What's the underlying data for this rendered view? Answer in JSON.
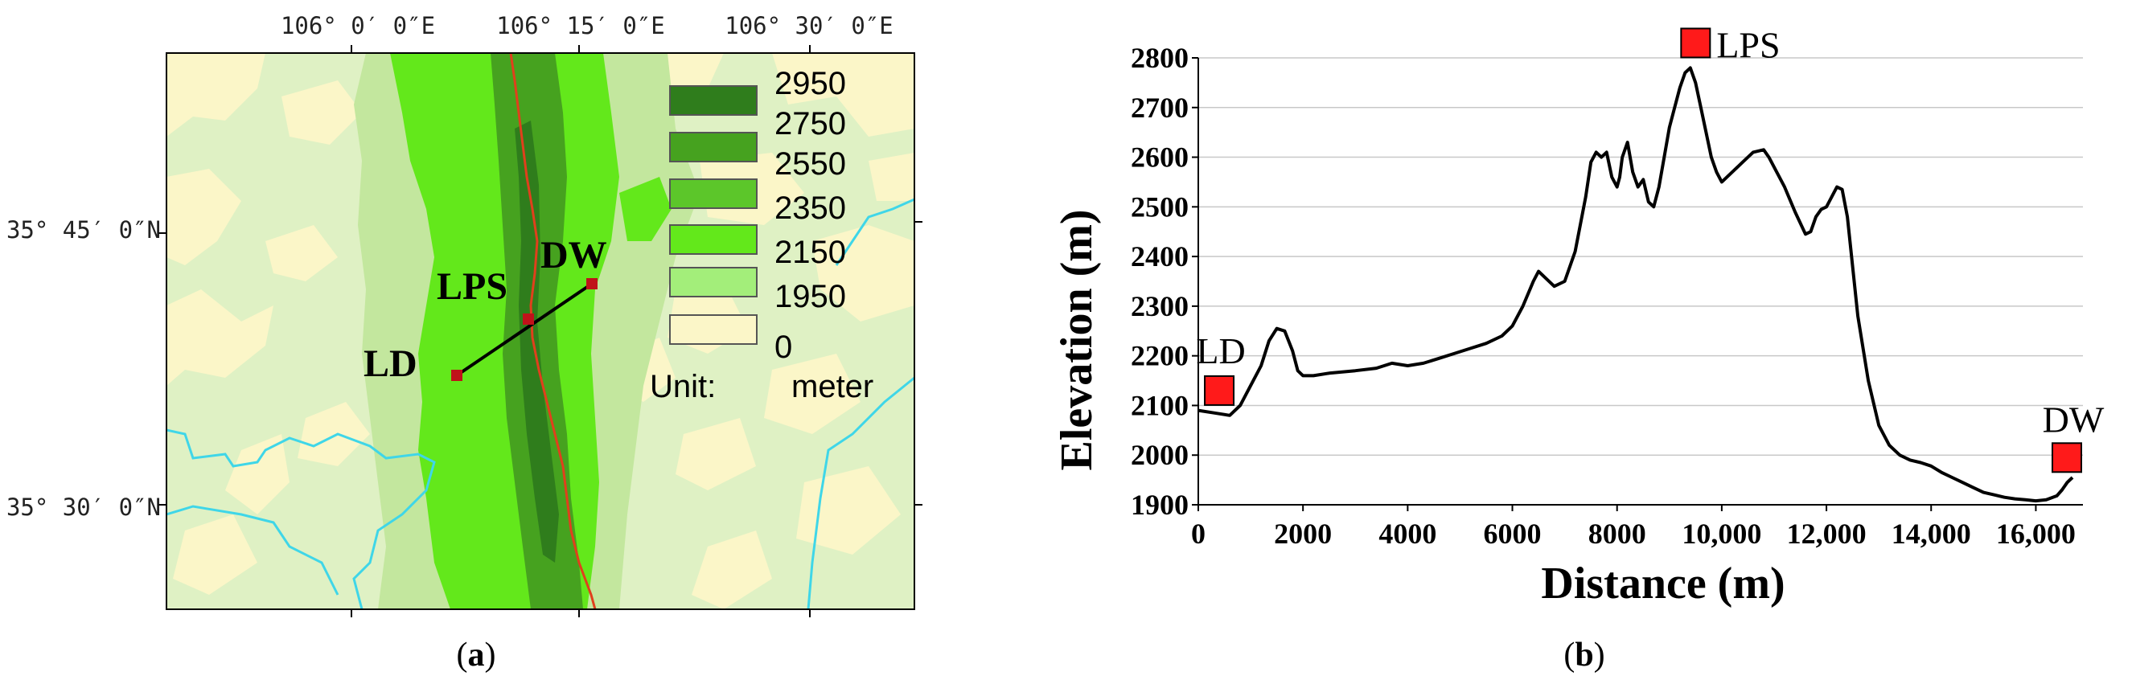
{
  "panels": {
    "a": {
      "label_open": "(",
      "label_letter": "a",
      "label_close": ")"
    },
    "b": {
      "label_open": "(",
      "label_letter": "b",
      "label_close": ")"
    }
  },
  "map": {
    "lon_labels": [
      "106° 0′ 0″E",
      "106° 15′ 0″E",
      "106° 30′ 0″E"
    ],
    "lat_labels": [
      "35° 45′ 0″N",
      "35° 30′ 0″N"
    ],
    "stations": [
      {
        "name": "LD"
      },
      {
        "name": "LPS"
      },
      {
        "name": "DW"
      }
    ],
    "legend": {
      "values": [
        "2950",
        "2750",
        "2550",
        "2350",
        "2150",
        "1950",
        "0"
      ],
      "swatch_colors": [
        "#2f7d1c",
        "#46a21f",
        "#5cc62a",
        "#63e81b",
        "#a3ee7a",
        "#fbf6c8"
      ],
      "unit_label": "Unit:",
      "unit_value": "meter"
    },
    "colors": {
      "background": "#ffffff",
      "low_terrain": "#fbf6c8",
      "pale_green": "#dff1c4",
      "light_green": "#c3e79e",
      "mid_green": "#63e81b",
      "dark_green": "#46a21f",
      "darkest_green": "#2f7d1c",
      "ridge_line": "#e0401c",
      "river": "#3fd6e8",
      "station": "#c0121a"
    }
  },
  "chart_data": {
    "type": "line",
    "title": "",
    "xlabel": "Distance (m)",
    "ylabel": "Elevation (m)",
    "xlim": [
      0,
      16900
    ],
    "ylim": [
      1900,
      2800
    ],
    "x_ticks": [
      0,
      2000,
      4000,
      6000,
      8000,
      10000,
      12000,
      14000,
      16000
    ],
    "x_tick_labels": [
      "0",
      "2000",
      "4000",
      "6000",
      "8000",
      "10,000",
      "12,000",
      "14,000",
      "16,000"
    ],
    "y_ticks": [
      1900,
      2000,
      2100,
      2200,
      2300,
      2400,
      2500,
      2600,
      2700,
      2800
    ],
    "y_tick_labels": [
      "1900",
      "2000",
      "2100",
      "2200",
      "2300",
      "2400",
      "2500",
      "2600",
      "2700",
      "2800"
    ],
    "grid": {
      "horizontal": true,
      "vertical": false
    },
    "line_color": "#000000",
    "x": [
      0,
      300,
      600,
      800,
      1000,
      1200,
      1350,
      1500,
      1650,
      1800,
      1900,
      2000,
      2200,
      2500,
      3000,
      3400,
      3700,
      4000,
      4300,
      4600,
      4900,
      5200,
      5500,
      5800,
      6000,
      6200,
      6400,
      6500,
      6600,
      6800,
      7000,
      7200,
      7400,
      7500,
      7600,
      7700,
      7800,
      7900,
      8000,
      8050,
      8100,
      8200,
      8300,
      8400,
      8500,
      8600,
      8700,
      8800,
      8900,
      9000,
      9100,
      9200,
      9300,
      9400,
      9500,
      9600,
      9700,
      9800,
      9900,
      10000,
      10200,
      10400,
      10600,
      10800,
      10900,
      11000,
      11200,
      11400,
      11600,
      11700,
      11800,
      11900,
      12000,
      12200,
      12300,
      12400,
      12500,
      12600,
      12800,
      13000,
      13200,
      13400,
      13600,
      13800,
      14000,
      14200,
      14400,
      14600,
      14800,
      15000,
      15200,
      15400,
      15600,
      15800,
      16000,
      16200,
      16400,
      16500,
      16600,
      16700
    ],
    "values": [
      2090,
      2085,
      2080,
      2100,
      2140,
      2180,
      2230,
      2255,
      2250,
      2210,
      2170,
      2160,
      2160,
      2165,
      2170,
      2175,
      2185,
      2180,
      2185,
      2195,
      2205,
      2215,
      2225,
      2240,
      2260,
      2300,
      2350,
      2370,
      2360,
      2340,
      2350,
      2410,
      2520,
      2590,
      2610,
      2600,
      2610,
      2560,
      2540,
      2560,
      2600,
      2630,
      2570,
      2540,
      2555,
      2510,
      2500,
      2540,
      2600,
      2660,
      2700,
      2740,
      2770,
      2780,
      2750,
      2700,
      2650,
      2600,
      2570,
      2550,
      2570,
      2590,
      2610,
      2615,
      2600,
      2580,
      2540,
      2490,
      2445,
      2450,
      2480,
      2495,
      2500,
      2540,
      2535,
      2480,
      2380,
      2280,
      2150,
      2060,
      2020,
      2000,
      1990,
      1985,
      1978,
      1965,
      1955,
      1945,
      1935,
      1925,
      1920,
      1915,
      1912,
      1910,
      1908,
      1910,
      1918,
      1930,
      1945,
      1955
    ],
    "annotations": [
      {
        "label": "LD",
        "x": 400,
        "y": 2130
      },
      {
        "label": "LPS",
        "x": 9500,
        "y": 2830
      },
      {
        "label": "DW",
        "x": 16900,
        "y": 1995
      }
    ]
  }
}
